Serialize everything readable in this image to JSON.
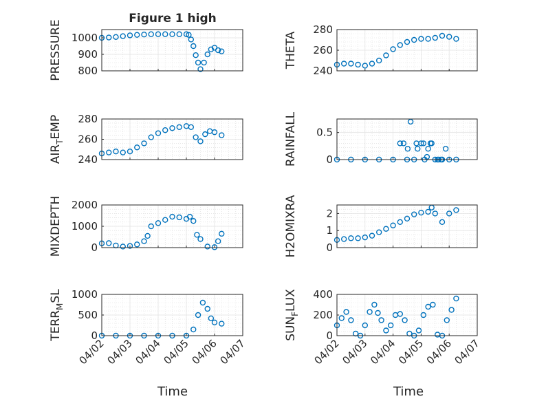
{
  "figure": {
    "title": "Figure 1 high",
    "xlabel": "Time",
    "x_ticks": [
      "04/02",
      "04/03",
      "04/04",
      "04/05",
      "04/06",
      "04/07"
    ],
    "marker_color": "#0072BD"
  },
  "chart_data": [
    {
      "type": "scatter",
      "ylabel": "PRESSURE",
      "ylim": [
        800,
        1050
      ],
      "yticks": [
        800,
        900,
        1000
      ],
      "grid": true,
      "x": [
        "2023-04-02 00:00",
        "2023-04-02 06:00",
        "2023-04-02 12:00",
        "2023-04-02 18:00",
        "2023-04-03 00:00",
        "2023-04-03 06:00",
        "2023-04-03 12:00",
        "2023-04-03 18:00",
        "2023-04-04 00:00",
        "2023-04-04 06:00",
        "2023-04-04 12:00",
        "2023-04-04 18:00",
        "2023-04-05 00:00",
        "2023-04-05 02:00",
        "2023-04-05 04:00",
        "2023-04-05 06:00",
        "2023-04-05 08:00",
        "2023-04-05 10:00",
        "2023-04-05 12:00",
        "2023-04-05 15:00",
        "2023-04-05 18:00",
        "2023-04-05 21:00",
        "2023-04-06 00:00",
        "2023-04-06 03:00",
        "2023-04-06 06:00"
      ],
      "y": [
        1000,
        1002,
        1005,
        1010,
        1015,
        1018,
        1020,
        1022,
        1022,
        1022,
        1022,
        1022,
        1022,
        1018,
        990,
        950,
        895,
        850,
        810,
        850,
        900,
        930,
        940,
        925,
        918
      ]
    },
    {
      "type": "scatter",
      "ylabel": "THETA",
      "ylim": [
        240,
        280
      ],
      "yticks": [
        240,
        260,
        280
      ],
      "grid": true,
      "x": [
        "2023-04-02 00:00",
        "2023-04-02 06:00",
        "2023-04-02 12:00",
        "2023-04-02 18:00",
        "2023-04-03 00:00",
        "2023-04-03 06:00",
        "2023-04-03 12:00",
        "2023-04-03 18:00",
        "2023-04-04 00:00",
        "2023-04-04 06:00",
        "2023-04-04 12:00",
        "2023-04-04 18:00",
        "2023-04-05 00:00",
        "2023-04-05 06:00",
        "2023-04-05 12:00",
        "2023-04-05 18:00",
        "2023-04-06 00:00",
        "2023-04-06 06:00"
      ],
      "y": [
        246,
        247,
        247,
        246,
        245,
        247,
        250,
        255,
        261,
        265,
        268,
        270,
        271,
        271,
        272,
        274,
        273,
        271
      ]
    },
    {
      "type": "scatter",
      "ylabel": "AIR_TEMP",
      "ylim": [
        240,
        280
      ],
      "yticks": [
        240,
        260,
        280
      ],
      "grid": true,
      "x": [
        "2023-04-02 00:00",
        "2023-04-02 06:00",
        "2023-04-02 12:00",
        "2023-04-02 18:00",
        "2023-04-03 00:00",
        "2023-04-03 06:00",
        "2023-04-03 12:00",
        "2023-04-03 18:00",
        "2023-04-04 00:00",
        "2023-04-04 06:00",
        "2023-04-04 12:00",
        "2023-04-04 18:00",
        "2023-04-05 00:00",
        "2023-04-05 04:00",
        "2023-04-05 08:00",
        "2023-04-05 12:00",
        "2023-04-05 16:00",
        "2023-04-05 20:00",
        "2023-04-06 00:00",
        "2023-04-06 06:00"
      ],
      "y": [
        246,
        247,
        248,
        247,
        248,
        252,
        256,
        262,
        266,
        269,
        271,
        272,
        273,
        272,
        262,
        258,
        265,
        268,
        267,
        264
      ]
    },
    {
      "type": "scatter",
      "ylabel": "RAINFALL",
      "ylim": [
        0,
        0.75
      ],
      "yticks": [
        0,
        0.5
      ],
      "grid": true,
      "x": [
        "2023-04-02 00:00",
        "2023-04-02 12:00",
        "2023-04-03 00:00",
        "2023-04-03 12:00",
        "2023-04-04 00:00",
        "2023-04-04 06:00",
        "2023-04-04 12:00",
        "2023-04-04 15:00",
        "2023-04-04 18:00",
        "2023-04-04 21:00",
        "2023-04-05 00:00",
        "2023-04-05 03:00",
        "2023-04-05 06:00",
        "2023-04-05 09:00",
        "2023-04-05 12:00",
        "2023-04-05 15:00",
        "2023-04-05 18:00",
        "2023-04-05 21:00",
        "2023-04-06 00:00",
        "2023-04-06 06:00",
        "2023-04-04 09:00",
        "2023-04-04 12:30",
        "2023-04-04 20:00",
        "2023-04-05 02:00",
        "2023-04-05 05:00",
        "2023-04-05 08:00",
        "2023-04-05 14:00",
        "2023-04-05 17:00"
      ],
      "y": [
        0,
        0,
        0,
        0,
        0,
        0.3,
        0,
        0.7,
        0,
        0.2,
        0.3,
        0,
        0.2,
        0.3,
        0,
        0,
        0,
        0.2,
        0,
        0,
        0.3,
        0.2,
        0.3,
        0.3,
        0.05,
        0.3,
        0,
        0
      ]
    },
    {
      "type": "scatter",
      "ylabel": "MIXDEPTH",
      "ylim": [
        0,
        2000
      ],
      "yticks": [
        0,
        1000,
        2000
      ],
      "grid": true,
      "x": [
        "2023-04-02 00:00",
        "2023-04-02 06:00",
        "2023-04-02 12:00",
        "2023-04-02 18:00",
        "2023-04-03 00:00",
        "2023-04-03 06:00",
        "2023-04-03 12:00",
        "2023-04-03 15:00",
        "2023-04-03 18:00",
        "2023-04-04 00:00",
        "2023-04-04 06:00",
        "2023-04-04 12:00",
        "2023-04-04 18:00",
        "2023-04-05 00:00",
        "2023-04-05 03:00",
        "2023-04-05 06:00",
        "2023-04-05 09:00",
        "2023-04-05 12:00",
        "2023-04-05 18:00",
        "2023-04-06 00:00",
        "2023-04-06 03:00",
        "2023-04-06 06:00"
      ],
      "y": [
        200,
        210,
        100,
        50,
        80,
        150,
        300,
        550,
        1000,
        1150,
        1300,
        1450,
        1420,
        1350,
        1450,
        1250,
        600,
        400,
        50,
        20,
        300,
        650
      ]
    },
    {
      "type": "scatter",
      "ylabel": "H2OMIXRA",
      "ylim": [
        0,
        2.5
      ],
      "yticks": [
        0,
        1,
        2
      ],
      "grid": true,
      "x": [
        "2023-04-02 00:00",
        "2023-04-02 06:00",
        "2023-04-02 12:00",
        "2023-04-02 18:00",
        "2023-04-03 00:00",
        "2023-04-03 06:00",
        "2023-04-03 12:00",
        "2023-04-03 18:00",
        "2023-04-04 00:00",
        "2023-04-04 06:00",
        "2023-04-04 12:00",
        "2023-04-04 18:00",
        "2023-04-05 00:00",
        "2023-04-05 06:00",
        "2023-04-05 09:00",
        "2023-04-05 12:00",
        "2023-04-05 18:00",
        "2023-04-06 00:00",
        "2023-04-06 06:00"
      ],
      "y": [
        0.45,
        0.5,
        0.55,
        0.55,
        0.6,
        0.7,
        0.9,
        1.1,
        1.3,
        1.5,
        1.7,
        1.95,
        2.05,
        2.1,
        2.35,
        2.0,
        1.5,
        2.0,
        2.2
      ]
    },
    {
      "type": "scatter",
      "ylabel": "TERR_MSL",
      "ylim": [
        0,
        1000
      ],
      "yticks": [
        0,
        500,
        1000
      ],
      "grid": true,
      "x": [
        "2023-04-02 00:00",
        "2023-04-02 12:00",
        "2023-04-03 00:00",
        "2023-04-03 12:00",
        "2023-04-04 00:00",
        "2023-04-04 12:00",
        "2023-04-05 00:00",
        "2023-04-05 06:00",
        "2023-04-05 10:00",
        "2023-04-05 14:00",
        "2023-04-05 18:00",
        "2023-04-05 21:00",
        "2023-04-06 00:00",
        "2023-04-06 06:00"
      ],
      "y": [
        0,
        0,
        0,
        0,
        0,
        0,
        0,
        150,
        500,
        800,
        650,
        420,
        320,
        290
      ]
    },
    {
      "type": "scatter",
      "ylabel": "SUN_FLUX",
      "ylim": [
        0,
        400
      ],
      "yticks": [
        0,
        200,
        400
      ],
      "grid": true,
      "x": [
        "2023-04-02 00:00",
        "2023-04-02 04:00",
        "2023-04-02 08:00",
        "2023-04-02 12:00",
        "2023-04-02 16:00",
        "2023-04-02 20:00",
        "2023-04-03 00:00",
        "2023-04-03 04:00",
        "2023-04-03 08:00",
        "2023-04-03 11:00",
        "2023-04-03 14:00",
        "2023-04-03 18:00",
        "2023-04-03 22:00",
        "2023-04-04 02:00",
        "2023-04-04 06:00",
        "2023-04-04 10:00",
        "2023-04-04 14:00",
        "2023-04-04 18:00",
        "2023-04-04 22:00",
        "2023-04-05 02:00",
        "2023-04-05 06:00",
        "2023-04-05 10:00",
        "2023-04-05 14:00",
        "2023-04-05 18:00",
        "2023-04-05 22:00",
        "2023-04-06 02:00",
        "2023-04-06 06:00"
      ],
      "y": [
        100,
        170,
        230,
        150,
        20,
        0,
        100,
        230,
        300,
        220,
        150,
        50,
        100,
        200,
        210,
        150,
        20,
        0,
        50,
        200,
        280,
        300,
        10,
        0,
        150,
        250,
        360
      ]
    }
  ]
}
